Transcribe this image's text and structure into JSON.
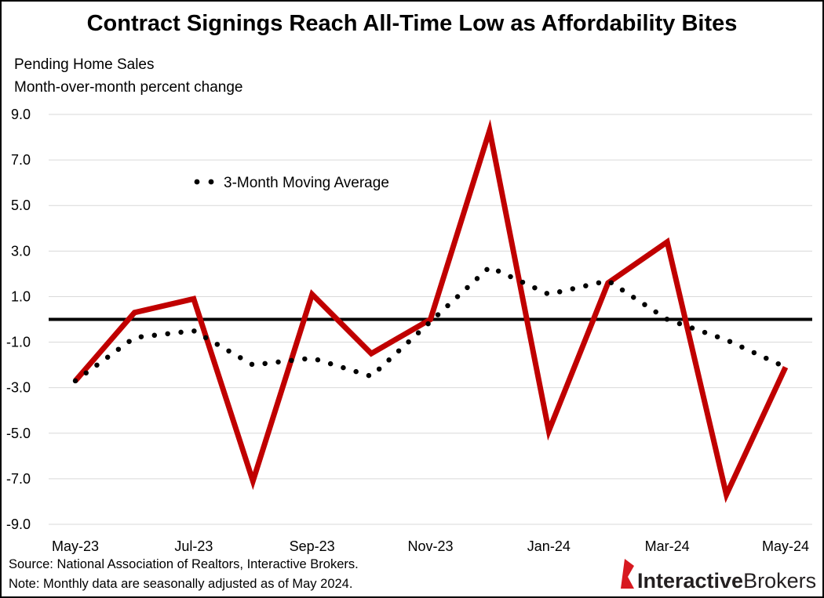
{
  "chart_data": {
    "type": "line",
    "title": "Contract Signings Reach All-Time Low as Affordability Bites",
    "subtitle_lines": [
      "Pending Home Sales",
      "Month-over-month percent change"
    ],
    "xlabel": "",
    "ylabel": "Month-over-month percent change",
    "categories": [
      "May-23",
      "Jun-23",
      "Jul-23",
      "Aug-23",
      "Sep-23",
      "Oct-23",
      "Nov-23",
      "Dec-23",
      "Jan-24",
      "Feb-24",
      "Mar-24",
      "Apr-24",
      "May-24"
    ],
    "x_tick_labels": [
      "May-23",
      "Jul-23",
      "Sep-23",
      "Nov-23",
      "Jan-24",
      "Mar-24",
      "May-24"
    ],
    "y_tick_labels": [
      "9.0",
      "7.0",
      "5.0",
      "3.0",
      "1.0",
      "-1.0",
      "-3.0",
      "-5.0",
      "-7.0",
      "-9.0"
    ],
    "ylim": [
      -9.0,
      9.0
    ],
    "grid": true,
    "zero_line": true,
    "legend_position": "top-left",
    "series": [
      {
        "name": "Pending Home Sales",
        "style": "solid",
        "color": "#c00000",
        "in_legend": false,
        "values": [
          -2.7,
          0.3,
          0.9,
          -7.1,
          1.1,
          -1.5,
          0.0,
          8.3,
          -4.9,
          1.6,
          3.4,
          -7.7,
          -2.1
        ]
      },
      {
        "name": "3-Month Moving Average",
        "style": "dotted",
        "color": "#000000",
        "in_legend": true,
        "values": [
          -2.7,
          -0.8,
          -0.5,
          -2.0,
          -1.7,
          -2.5,
          -0.1,
          2.3,
          1.1,
          1.7,
          0.0,
          -0.9,
          -2.1
        ]
      }
    ],
    "footnotes": [
      "Source: National Association of Realtors, Interactive Brokers.",
      "Note: Monthly data are seasonally adjusted as of May 2024."
    ]
  },
  "brand": {
    "logo_part1": "Interactive",
    "logo_part2": "Brokers",
    "accent_color": "#d71920"
  }
}
